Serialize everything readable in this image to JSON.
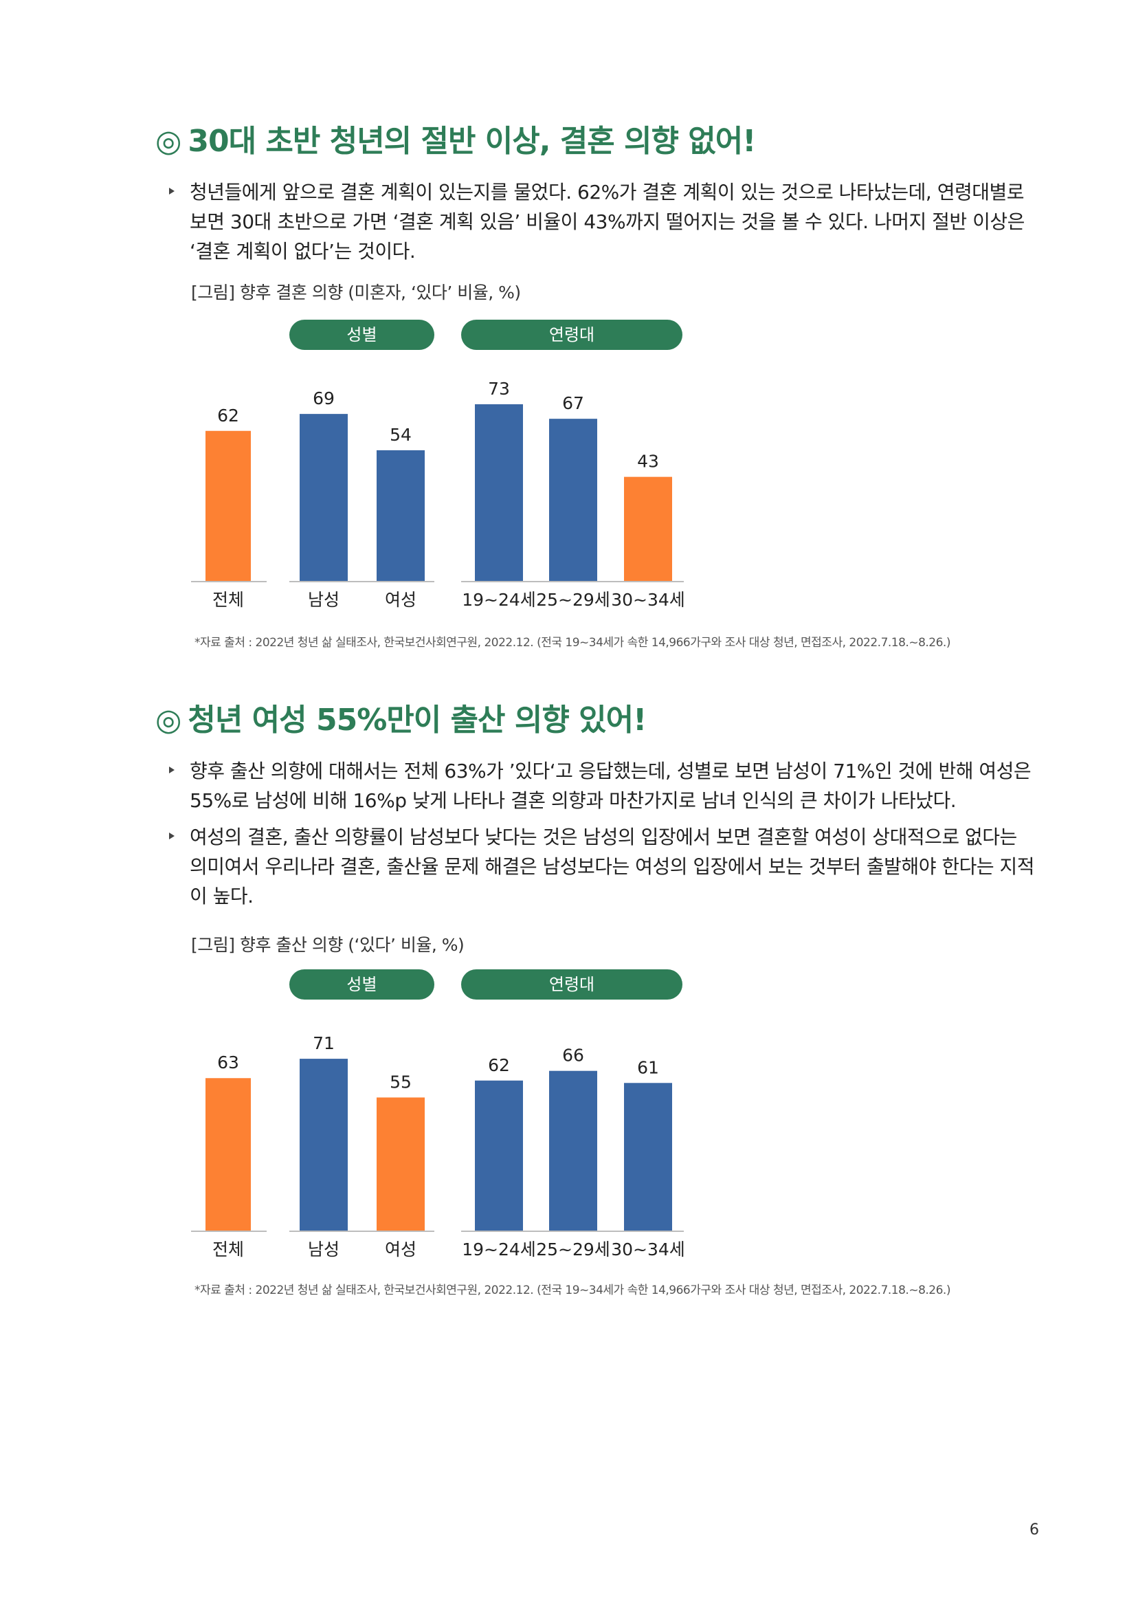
{
  "sections": [
    {
      "mark": "◎",
      "title": "30대 초반 청년의 절반 이상, 결혼 의향 없어!",
      "bullets": [
        "청년들에게 앞으로 결혼 계획이 있는지를 물었다. 62%가 결혼 계획이 있는 것으로 나타났는데, 연령대별로 보면 30대 초반으로 가면 ‘결혼 계획 있음’ 비율이 43%까지 떨어지는 것을 볼 수 있다. 나머지 절반 이상은 ‘결혼 계획이 없다’는 것이다."
      ],
      "caption": "[그림] 향후 결혼 의향 (미혼자, ‘있다’ 비율, %)",
      "source": "*자료 출처 : 2022년 청년 삶 실태조사, 한국보건사회연구원, 2022.12. (전국 19~34세가 속한 14,966가구와 조사 대상 청년, 면접조사, 2022.7.18.~8.26.)"
    },
    {
      "mark": "◎",
      "title": "청년 여성 55%만이 출산 의향 있어!",
      "bullets": [
        "향후 출산 의향에 대해서는 전체 63%가 ’있다‘고 응답했는데, 성별로 보면 남성이 71%인 것에 반해 여성은 55%로 남성에 비해 16%p 낮게 나타나 결혼 의향과 마찬가지로 남녀 인식의 큰 차이가 나타났다.",
        "여성의 결혼, 출산 의향률이 남성보다 낮다는 것은 남성의 입장에서 보면 결혼할 여성이 상대적으로 없다는 의미여서 우리나라 결혼, 출산율 문제 해결은 남성보다는 여성의 입장에서 보는 것부터 출발해야 한다는 지적이 높다."
      ],
      "caption": "[그림] 향후 출산 의향 (‘있다’ 비율, %)",
      "source": "*자료 출처 : 2022년 청년 삶 실태조사, 한국보건사회연구원, 2022.12. (전국 19~34세가 속한 14,966가구와 조사 대상 청년, 면접조사, 2022.7.18.~8.26.)"
    }
  ],
  "chart_data": [
    {
      "type": "bar",
      "group_labels": [
        "성별",
        "연령대"
      ],
      "categories": [
        "전체",
        "남성",
        "여성",
        "19~24세",
        "25~29세",
        "30~34세"
      ],
      "values": [
        62,
        69,
        54,
        73,
        67,
        43
      ],
      "bar_colors": [
        "#fd8133",
        "#3a67a4",
        "#3a67a4",
        "#3a67a4",
        "#3a67a4",
        "#fd8133"
      ],
      "ylim": [
        0,
        80
      ],
      "grid": false
    },
    {
      "type": "bar",
      "group_labels": [
        "성별",
        "연령대"
      ],
      "categories": [
        "전체",
        "남성",
        "여성",
        "19~24세",
        "25~29세",
        "30~34세"
      ],
      "values": [
        63,
        71,
        55,
        62,
        66,
        61
      ],
      "bar_colors": [
        "#fd8133",
        "#3a67a4",
        "#fd8133",
        "#3a67a4",
        "#3a67a4",
        "#3a67a4"
      ],
      "ylim": [
        0,
        80
      ],
      "grid": false
    }
  ],
  "colors": {
    "title_green": "#2e7d57",
    "pill_green": "#2e7d57",
    "orange": "#fd8133",
    "blue": "#3a67a4"
  },
  "page_number": "6"
}
